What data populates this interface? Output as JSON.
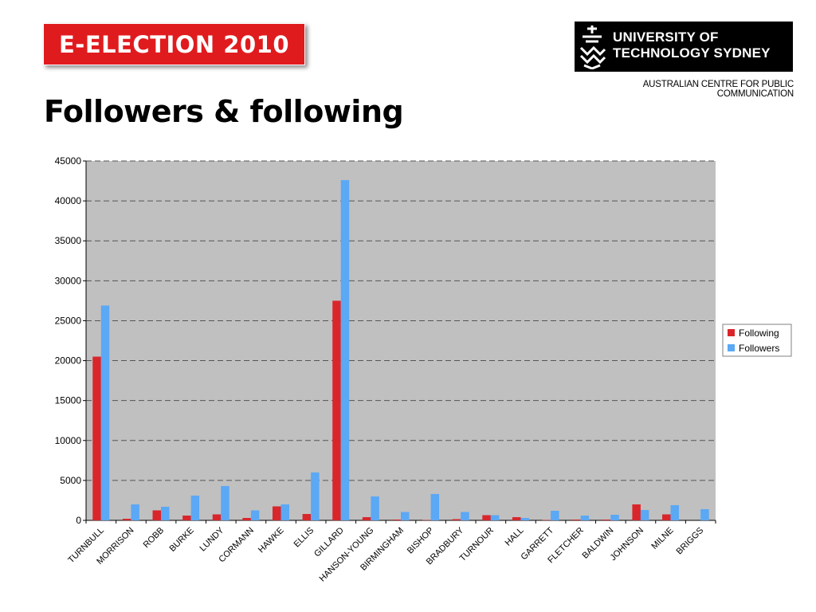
{
  "header": {
    "banner_text": "E-ELECTION 2010",
    "logo_line1": "UNIVERSITY OF",
    "logo_line2": "TECHNOLOGY SYDNEY",
    "logo_subtitle": "AUSTRALIAN CENTRE FOR PUBLIC COMMUNICATION",
    "page_title": "Followers & following"
  },
  "chart_data": {
    "type": "bar",
    "title": "",
    "xlabel": "",
    "ylabel": "",
    "ylim": [
      0,
      45000
    ],
    "yticks": [
      0,
      5000,
      10000,
      15000,
      20000,
      25000,
      30000,
      35000,
      40000,
      45000
    ],
    "grid": true,
    "legend_position": "right",
    "plot_background": "#c0c0c0",
    "categories": [
      "TURNBULL",
      "MORRISON",
      "ROBB",
      "BURKE",
      "LUNDY",
      "CORMANN",
      "HAWKE",
      "ELLIS",
      "GILLARD",
      "HANSON-YOUNG",
      "BIRMINGHAM",
      "BISHOP",
      "BRADBURY",
      "TURNOUR",
      "HALL",
      "GARRETT",
      "FLETCHER",
      "BALDWIN",
      "JOHNSON",
      "MILNE",
      "BRIGGS"
    ],
    "series": [
      {
        "name": "Following",
        "color": "#d9262b",
        "values": [
          20500,
          200,
          1250,
          600,
          750,
          300,
          1750,
          800,
          27500,
          400,
          100,
          50,
          150,
          650,
          400,
          50,
          100,
          100,
          2000,
          750,
          0
        ]
      },
      {
        "name": "Followers",
        "color": "#5ba8f5",
        "values": [
          26900,
          2000,
          1700,
          3100,
          4300,
          1250,
          2000,
          6000,
          42600,
          3000,
          1050,
          3300,
          1050,
          650,
          300,
          1200,
          600,
          700,
          1300,
          1900,
          1400
        ]
      }
    ]
  }
}
